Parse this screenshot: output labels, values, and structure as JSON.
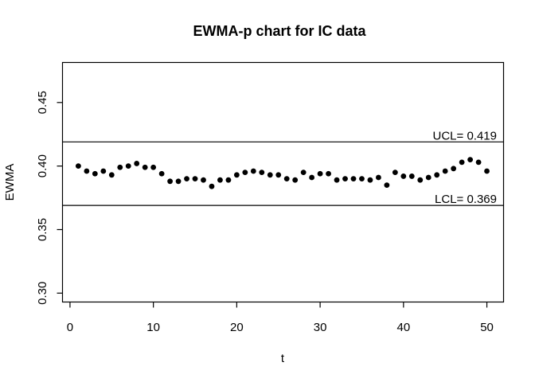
{
  "chart_data": {
    "type": "scatter",
    "title": "EWMA-p chart for IC data",
    "xlabel": "t",
    "ylabel": "EWMA",
    "point_color": "#000000",
    "line_color": "#000000",
    "background_color": "#ffffff",
    "grid": false,
    "xlim": [
      -0.9,
      52.0
    ],
    "ylim": [
      0.293,
      0.4815
    ],
    "xticks": [
      {
        "value": 0,
        "label": "0"
      },
      {
        "value": 10,
        "label": "10"
      },
      {
        "value": 20,
        "label": "20"
      },
      {
        "value": 30,
        "label": "30"
      },
      {
        "value": 40,
        "label": "40"
      },
      {
        "value": 50,
        "label": "50"
      }
    ],
    "yticks": [
      {
        "value": 0.3,
        "label": "0.30"
      },
      {
        "value": 0.35,
        "label": "0.35"
      },
      {
        "value": 0.4,
        "label": "0.40"
      },
      {
        "value": 0.45,
        "label": "0.45"
      }
    ],
    "ucl": {
      "label": "UCL= 0.419",
      "value": 0.419
    },
    "lcl": {
      "label": "LCL= 0.369",
      "value": 0.369
    },
    "x": [
      1,
      2,
      3,
      4,
      5,
      6,
      7,
      8,
      9,
      10,
      11,
      12,
      13,
      14,
      15,
      16,
      17,
      18,
      19,
      20,
      21,
      22,
      23,
      24,
      25,
      26,
      27,
      28,
      29,
      30,
      31,
      32,
      33,
      34,
      35,
      36,
      37,
      38,
      39,
      40,
      41,
      42,
      43,
      44,
      45,
      46,
      47,
      48,
      49,
      50
    ],
    "values": [
      0.4,
      0.396,
      0.394,
      0.396,
      0.393,
      0.399,
      0.4,
      0.402,
      0.399,
      0.399,
      0.394,
      0.388,
      0.388,
      0.39,
      0.39,
      0.389,
      0.384,
      0.389,
      0.389,
      0.393,
      0.395,
      0.396,
      0.395,
      0.393,
      0.393,
      0.39,
      0.389,
      0.395,
      0.391,
      0.394,
      0.394,
      0.389,
      0.39,
      0.39,
      0.39,
      0.389,
      0.391,
      0.385,
      0.395,
      0.392,
      0.392,
      0.389,
      0.391,
      0.393,
      0.396,
      0.398,
      0.403,
      0.405,
      0.403,
      0.396
    ]
  }
}
